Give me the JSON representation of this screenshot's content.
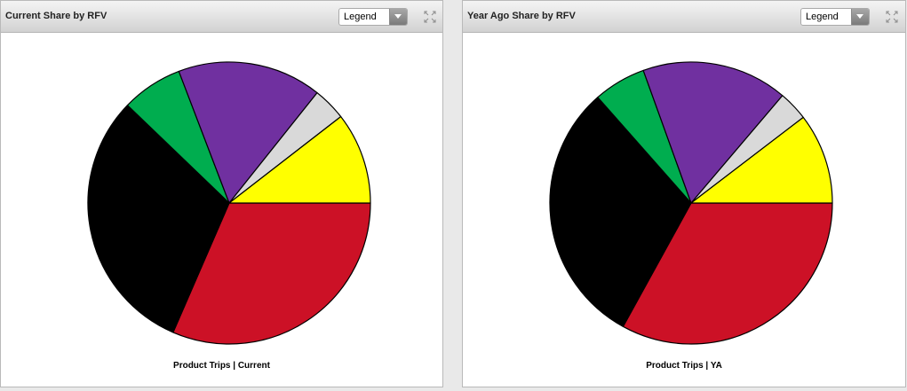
{
  "panels": [
    {
      "title": "Current Share by RFV",
      "legend_select": "Legend",
      "caption": "Product Trips | Current"
    },
    {
      "title": "Year Ago Share by RFV",
      "legend_select": "Legend",
      "caption": "Product Trips | YA"
    }
  ],
  "chart_data": [
    {
      "type": "pie",
      "title": "Current Share by RFV",
      "xlabel": "Product Trips | Current",
      "start_direction": "east",
      "direction": "clockwise",
      "slices": [
        {
          "value": 31.5,
          "color": "#cc1126"
        },
        {
          "value": 30.7,
          "color": "#000000"
        },
        {
          "value": 7.0,
          "color": "#00ad4f"
        },
        {
          "value": 16.5,
          "color": "#7030a0"
        },
        {
          "value": 3.8,
          "color": "#d9d9d9"
        },
        {
          "value": 10.5,
          "color": "#ffff00"
        }
      ]
    },
    {
      "type": "pie",
      "title": "Year Ago Share by RFV",
      "xlabel": "Product Trips | YA",
      "start_direction": "east",
      "direction": "clockwise",
      "slices": [
        {
          "value": 33.0,
          "color": "#cc1126"
        },
        {
          "value": 30.5,
          "color": "#000000"
        },
        {
          "value": 6.0,
          "color": "#00ad4f"
        },
        {
          "value": 16.7,
          "color": "#7030a0"
        },
        {
          "value": 3.4,
          "color": "#d9d9d9"
        },
        {
          "value": 10.4,
          "color": "#ffff00"
        }
      ]
    }
  ]
}
